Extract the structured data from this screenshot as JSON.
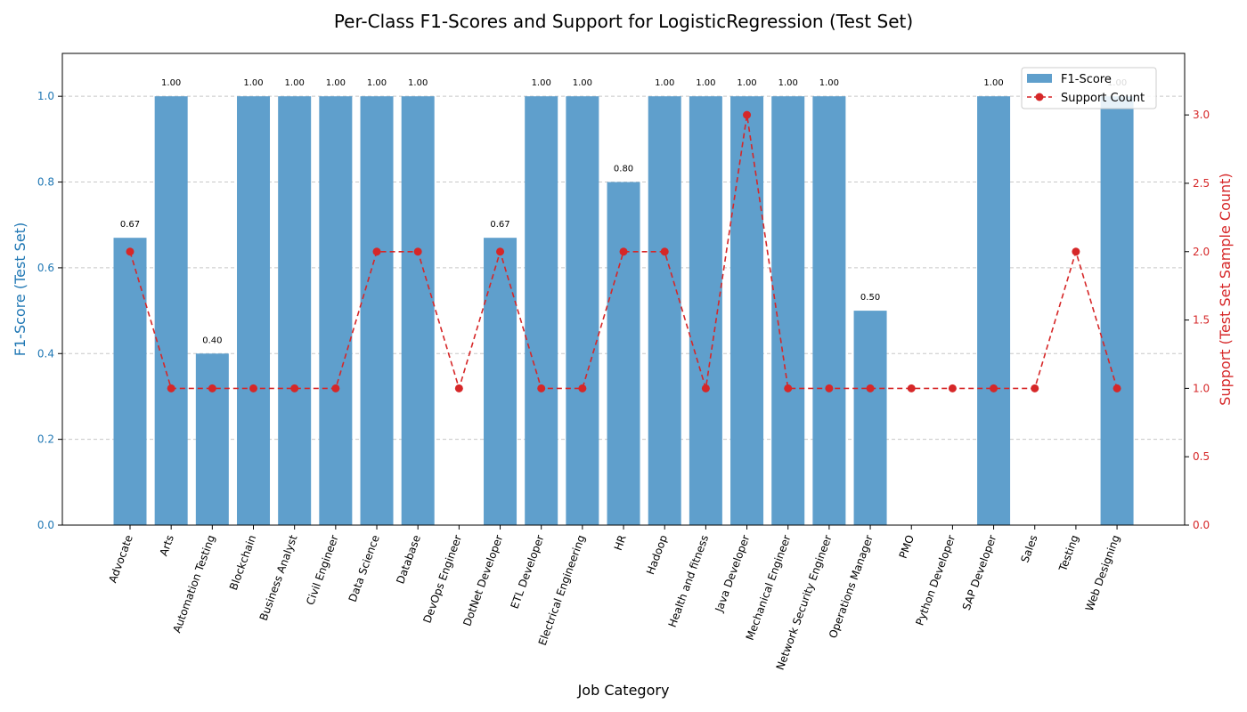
{
  "chart_data": {
    "type": "bar",
    "title": "Per-Class F1-Scores and Support for LogisticRegression (Test Set)",
    "xlabel": "Job Category",
    "ylabel": "F1-Score (Test Set)",
    "y2label": "Support (Test Set Sample Count)",
    "ylim": [
      0,
      1.1
    ],
    "y2lim": [
      0,
      3.45
    ],
    "yticks": [
      "0.0",
      "0.2",
      "0.4",
      "0.6",
      "0.8",
      "1.0"
    ],
    "y2ticks": [
      "0.0",
      "0.5",
      "1.0",
      "1.5",
      "2.0",
      "2.5",
      "3.0"
    ],
    "grid": true,
    "legend_position": "top-right",
    "categories": [
      "Advocate",
      "Arts",
      "Automation Testing",
      "Blockchain",
      "Business Analyst",
      "Civil Engineer",
      "Data Science",
      "Database",
      "DevOps Engineer",
      "DotNet Developer",
      "ETL Developer",
      "Electrical Engineering",
      "HR",
      "Hadoop",
      "Health and fitness",
      "Java Developer",
      "Mechanical Engineer",
      "Network Security Engineer",
      "Operations Manager",
      "PMO",
      "Python Developer",
      "SAP Developer",
      "Sales",
      "Testing",
      "Web Designing"
    ],
    "series": [
      {
        "name": "F1-Score",
        "type": "bar",
        "color": "#5f9fcc",
        "values": [
          0.67,
          1.0,
          0.4,
          1.0,
          1.0,
          1.0,
          1.0,
          1.0,
          0.0,
          0.67,
          1.0,
          1.0,
          0.8,
          1.0,
          1.0,
          1.0,
          1.0,
          1.0,
          0.5,
          0.0,
          0.0,
          1.0,
          0.0,
          0.0,
          1.0
        ],
        "labels": [
          "0.67",
          "1.00",
          "0.40",
          "1.00",
          "1.00",
          "1.00",
          "1.00",
          "1.00",
          "",
          "0.67",
          "1.00",
          "1.00",
          "0.80",
          "1.00",
          "1.00",
          "1.00",
          "1.00",
          "1.00",
          "0.50",
          "",
          "",
          "1.00",
          "",
          "",
          "1.00"
        ]
      },
      {
        "name": "Support Count",
        "type": "line",
        "axis": "right",
        "color": "#d62728",
        "values": [
          2,
          1,
          1,
          1,
          1,
          1,
          2,
          2,
          1,
          2,
          1,
          1,
          2,
          2,
          1,
          3,
          1,
          1,
          1,
          1,
          1,
          1,
          1,
          2,
          1
        ]
      }
    ],
    "axis_colors": {
      "left": "#1f77b4",
      "right": "#d62728"
    }
  }
}
